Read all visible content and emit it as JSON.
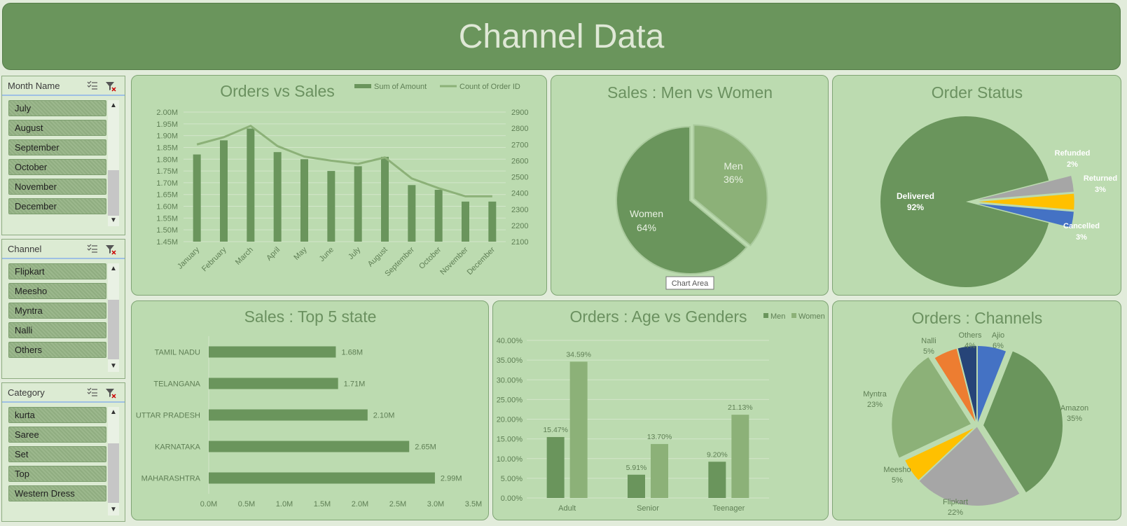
{
  "title": "Channel Data",
  "slicers": {
    "month": {
      "title": "Month Name",
      "items": [
        "July",
        "August",
        "September",
        "October",
        "November",
        "December"
      ]
    },
    "channel": {
      "title": "Channel",
      "items": [
        "Flipkart",
        "Meesho",
        "Myntra",
        "Nalli",
        "Others"
      ]
    },
    "category": {
      "title": "Category",
      "items": [
        "kurta",
        "Saree",
        "Set",
        "Top",
        "Western Dress"
      ]
    },
    "scroll_up": "▲",
    "scroll_down": "▼"
  },
  "colors": {
    "dark_green": "#6a955c",
    "light_green": "#8cb178",
    "panel_bg": "#bcdbb0",
    "gray": "#a6a6a6",
    "amber": "#ffc000",
    "blue": "#4472c4",
    "orange": "#ed7d31",
    "navy": "#264478"
  },
  "chart_area_tooltip": "Chart Area",
  "chart_data": [
    {
      "id": "orders-vs-sales",
      "type": "bar",
      "title": "Orders vs Sales",
      "categories": [
        "January",
        "February",
        "March",
        "April",
        "May",
        "June",
        "July",
        "August",
        "September",
        "October",
        "November",
        "December"
      ],
      "series": [
        {
          "name": "Sum of Amount",
          "type": "bar",
          "axis": "left",
          "values": [
            1.82,
            1.88,
            1.93,
            1.83,
            1.8,
            1.75,
            1.77,
            1.81,
            1.69,
            1.67,
            1.62,
            1.62
          ]
        },
        {
          "name": "Count of Order ID",
          "type": "line",
          "axis": "right",
          "values": [
            2700,
            2745,
            2815,
            2690,
            2625,
            2600,
            2580,
            2620,
            2490,
            2430,
            2380,
            2380
          ]
        }
      ],
      "y_left_ticks": [
        "2.00M",
        "1.95M",
        "1.90M",
        "1.85M",
        "1.80M",
        "1.75M",
        "1.70M",
        "1.65M",
        "1.60M",
        "1.55M",
        "1.50M",
        "1.45M"
      ],
      "y_right_ticks": [
        "2900",
        "2800",
        "2700",
        "2600",
        "2500",
        "2400",
        "2300",
        "2200",
        "2100"
      ],
      "ylim_left": [
        1.45,
        2.0
      ],
      "ylim_right": [
        2100,
        2900
      ],
      "legend": "top-right"
    },
    {
      "id": "sales-men-women",
      "type": "pie",
      "title": "Sales : Men vs Women",
      "slices": [
        {
          "label": "Men",
          "value": 36,
          "pct": "36%"
        },
        {
          "label": "Women",
          "value": 64,
          "pct": "64%"
        }
      ]
    },
    {
      "id": "order-status",
      "type": "pie",
      "title": "Order Status",
      "slices": [
        {
          "label": "Delivered",
          "value": 92,
          "pct": "92%"
        },
        {
          "label": "Refunded",
          "value": 2,
          "pct": "2%"
        },
        {
          "label": "Returned",
          "value": 3,
          "pct": "3%"
        },
        {
          "label": "Cancelled",
          "value": 3,
          "pct": "3%"
        }
      ]
    },
    {
      "id": "sales-top-5-state",
      "type": "bar",
      "orientation": "horizontal",
      "title": "Sales : Top 5 state",
      "categories": [
        "TAMIL NADU",
        "TELANGANA",
        "UTTAR PRADESH",
        "KARNATAKA",
        "MAHARASHTRA"
      ],
      "values": [
        1.68,
        1.71,
        2.1,
        2.65,
        2.99
      ],
      "data_labels": [
        "1.68M",
        "1.71M",
        "2.10M",
        "2.65M",
        "2.99M"
      ],
      "x_ticks": [
        "0.0M",
        "0.5M",
        "1.0M",
        "1.5M",
        "2.0M",
        "2.5M",
        "3.0M",
        "3.5M"
      ],
      "xlim": [
        0,
        3.5
      ]
    },
    {
      "id": "orders-age-genders",
      "type": "bar",
      "title": "Orders : Age vs Genders",
      "categories": [
        "Adult",
        "Senior",
        "Teenager"
      ],
      "series": [
        {
          "name": "Men",
          "values": [
            15.47,
            5.91,
            9.2
          ],
          "labels": [
            "15.47%",
            "5.91%",
            "9.20%"
          ]
        },
        {
          "name": "Women",
          "values": [
            34.59,
            13.7,
            21.13
          ],
          "labels": [
            "34.59%",
            "13.70%",
            "21.13%"
          ]
        }
      ],
      "y_ticks": [
        "40.00%",
        "35.00%",
        "30.00%",
        "25.00%",
        "20.00%",
        "15.00%",
        "10.00%",
        "5.00%",
        "0.00%"
      ],
      "ylim": [
        0,
        40
      ],
      "legend": "top-right"
    },
    {
      "id": "orders-channels",
      "type": "pie",
      "title": "Orders : Channels",
      "slices": [
        {
          "label": "Ajio",
          "value": 6,
          "pct": "6%"
        },
        {
          "label": "Amazon",
          "value": 35,
          "pct": "35%"
        },
        {
          "label": "Flipkart",
          "value": 22,
          "pct": "22%"
        },
        {
          "label": "Meesho",
          "value": 5,
          "pct": "5%"
        },
        {
          "label": "Myntra",
          "value": 23,
          "pct": "23%"
        },
        {
          "label": "Nalli",
          "value": 5,
          "pct": "5%"
        },
        {
          "label": "Others",
          "value": 4,
          "pct": "4%"
        }
      ]
    }
  ]
}
